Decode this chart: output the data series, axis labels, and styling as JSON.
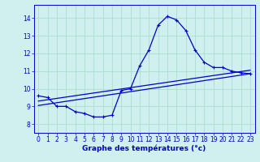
{
  "xlabel": "Graphe des températures (°c)",
  "bg_color": "#cff0ee",
  "grid_color": "#aaddcc",
  "line_color": "#0000cc",
  "xlim": [
    -0.5,
    23.5
  ],
  "ylim": [
    7.5,
    14.75
  ],
  "xticks": [
    0,
    1,
    2,
    3,
    4,
    5,
    6,
    7,
    8,
    9,
    10,
    11,
    12,
    13,
    14,
    15,
    16,
    17,
    18,
    19,
    20,
    21,
    22,
    23
  ],
  "yticks": [
    8,
    9,
    10,
    11,
    12,
    13,
    14
  ],
  "curve1_x": [
    0,
    1,
    2,
    3,
    4,
    5,
    6,
    7,
    8,
    9,
    10,
    11,
    12,
    13,
    14,
    15,
    16,
    17,
    18,
    19,
    20,
    21,
    22,
    23
  ],
  "curve1_y": [
    9.6,
    9.5,
    9.0,
    9.0,
    8.7,
    8.6,
    8.4,
    8.4,
    8.5,
    9.9,
    10.0,
    11.3,
    12.2,
    13.6,
    14.1,
    13.9,
    13.3,
    12.2,
    11.5,
    11.2,
    11.2,
    11.0,
    10.9,
    10.85
  ],
  "trend1_x": [
    0,
    23
  ],
  "trend1_y": [
    9.3,
    11.05
  ],
  "trend2_x": [
    0,
    23
  ],
  "trend2_y": [
    9.05,
    10.85
  ]
}
